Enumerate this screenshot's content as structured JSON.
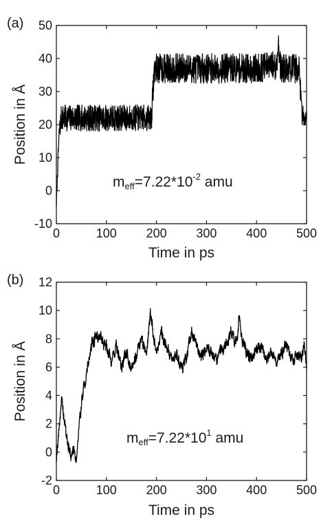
{
  "chart_data": [
    {
      "type": "line",
      "panel_label": "(a)",
      "xlabel": "Time in ps",
      "ylabel": "Position in Å",
      "xlim": [
        0,
        500
      ],
      "ylim": [
        -10,
        50
      ],
      "xticks": [
        "0",
        "100",
        "200",
        "300",
        "400",
        "500"
      ],
      "yticks": [
        "-10",
        "0",
        "10",
        "20",
        "30",
        "40",
        "50"
      ],
      "annotation": {
        "base": "m",
        "sub": "eff",
        "text": "=7.22*10",
        "exp": "-2",
        "unit": " amu"
      },
      "series": [
        {
          "color": "#000000",
          "description_points": [
            [
              0,
              -4
            ],
            [
              2,
              4
            ],
            [
              4,
              12
            ],
            [
              6,
              18
            ],
            [
              8,
              20
            ],
            [
              10,
              22
            ],
            [
              100,
              22
            ],
            [
              150,
              22
            ],
            [
              190,
              22
            ],
            [
              193,
              30
            ],
            [
              196,
              37
            ],
            [
              250,
              37
            ],
            [
              300,
              37
            ],
            [
              350,
              37
            ],
            [
              400,
              37
            ],
            [
              440,
              38
            ],
            [
              444,
              45
            ],
            [
              448,
              37
            ],
            [
              485,
              37
            ],
            [
              488,
              30
            ],
            [
              491,
              23
            ],
            [
              500,
              22
            ]
          ],
          "noise_amplitude": [
            [
              0,
              1.5
            ],
            [
              10,
              4
            ],
            [
              190,
              4
            ],
            [
              196,
              4.5
            ],
            [
              485,
              4.5
            ],
            [
              491,
              3
            ],
            [
              500,
              3
            ]
          ]
        }
      ]
    },
    {
      "type": "line",
      "panel_label": "(b)",
      "xlabel": "Time in ps",
      "ylabel": "Position in Å",
      "xlim": [
        0,
        500
      ],
      "ylim": [
        -2,
        12
      ],
      "xticks": [
        "0",
        "100",
        "200",
        "300",
        "400",
        "500"
      ],
      "yticks": [
        "-2",
        "0",
        "2",
        "4",
        "6",
        "8",
        "10",
        "12"
      ],
      "annotation": {
        "base": "m",
        "sub": "eff",
        "text": "=7.22*10",
        "exp": "1",
        "unit": " amu"
      },
      "series": [
        {
          "color": "#000000",
          "description_points": [
            [
              0,
              -0.3
            ],
            [
              5,
              1.5
            ],
            [
              10,
              3.7
            ],
            [
              15,
              2.5
            ],
            [
              20,
              1.2
            ],
            [
              25,
              0.2
            ],
            [
              30,
              -0.3
            ],
            [
              35,
              0.3
            ],
            [
              40,
              -0.5
            ],
            [
              45,
              1.5
            ],
            [
              50,
              3.5
            ],
            [
              55,
              4.5
            ],
            [
              60,
              5.5
            ],
            [
              65,
              6.5
            ],
            [
              70,
              7.5
            ],
            [
              80,
              8.3
            ],
            [
              90,
              8.0
            ],
            [
              100,
              7.5
            ],
            [
              110,
              6.5
            ],
            [
              120,
              7.5
            ],
            [
              130,
              6.0
            ],
            [
              140,
              7.0
            ],
            [
              150,
              6.0
            ],
            [
              160,
              7.0
            ],
            [
              170,
              8.0
            ],
            [
              180,
              7.0
            ],
            [
              188,
              9.8
            ],
            [
              195,
              8.0
            ],
            [
              200,
              7.0
            ],
            [
              210,
              8.5
            ],
            [
              220,
              7.5
            ],
            [
              230,
              6.5
            ],
            [
              240,
              7.0
            ],
            [
              250,
              6.0
            ],
            [
              260,
              6.5
            ],
            [
              270,
              8.5
            ],
            [
              280,
              7.5
            ],
            [
              290,
              6.8
            ],
            [
              300,
              7.5
            ],
            [
              310,
              7.0
            ],
            [
              320,
              6.5
            ],
            [
              330,
              7.2
            ],
            [
              340,
              7.6
            ],
            [
              350,
              8.5
            ],
            [
              360,
              7.5
            ],
            [
              365,
              9.5
            ],
            [
              370,
              8.0
            ],
            [
              380,
              7.0
            ],
            [
              390,
              6.5
            ],
            [
              400,
              7.2
            ],
            [
              410,
              7.5
            ],
            [
              420,
              6.5
            ],
            [
              430,
              7.0
            ],
            [
              440,
              6.5
            ],
            [
              450,
              7.0
            ],
            [
              460,
              7.5
            ],
            [
              470,
              6.5
            ],
            [
              480,
              6.8
            ],
            [
              490,
              6.5
            ],
            [
              495,
              7.5
            ],
            [
              500,
              5.8
            ]
          ],
          "noise_amplitude": [
            [
              0,
              0.8
            ],
            [
              500,
              0.8
            ]
          ]
        }
      ]
    }
  ]
}
